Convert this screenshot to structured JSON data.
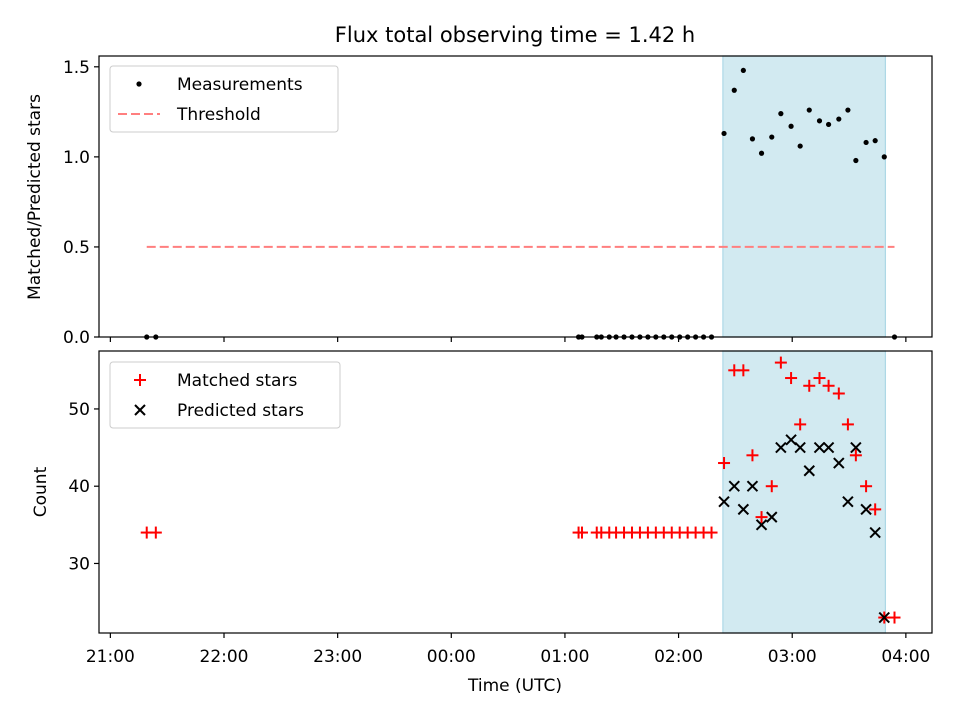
{
  "title": "Flux total observing time = 1.42 h",
  "xlabel": "Time (UTC)",
  "xticks": [
    {
      "h": 21,
      "label": "21:00"
    },
    {
      "h": 22,
      "label": "22:00"
    },
    {
      "h": 23,
      "label": "23:00"
    },
    {
      "h": 24,
      "label": "00:00"
    },
    {
      "h": 25,
      "label": "01:00"
    },
    {
      "h": 26,
      "label": "02:00"
    },
    {
      "h": 27,
      "label": "03:00"
    },
    {
      "h": 28,
      "label": "04:00"
    }
  ],
  "colors": {
    "shade": "#add8e6",
    "threshold": "#ff7f7f",
    "matched": "#ff0000",
    "predicted": "#000000",
    "points": "#000000"
  },
  "chart_data": [
    {
      "type": "scatter",
      "ylabel": "Matched/Predicted stars",
      "xlim": [
        20.9,
        28.23
      ],
      "ylim": [
        0,
        1.56
      ],
      "yticks": [
        {
          "v": 0,
          "label": "0.0"
        },
        {
          "v": 0.5,
          "label": "0.5"
        },
        {
          "v": 1.0,
          "label": "1.0"
        },
        {
          "v": 1.5,
          "label": "1.5"
        }
      ],
      "shaded_region": [
        26.39,
        27.82
      ],
      "legend": [
        "Measurements",
        "Threshold"
      ],
      "legend_location": "upper-left",
      "threshold": {
        "y": 0.5,
        "x_range": [
          21.32,
          27.9
        ]
      },
      "series": [
        {
          "name": "Measurements",
          "x": [
            21.32,
            21.4,
            25.12,
            25.15,
            25.28,
            25.32,
            25.39,
            25.45,
            25.52,
            25.59,
            25.66,
            25.73,
            25.8,
            25.87,
            25.94,
            26.01,
            26.08,
            26.15,
            26.22,
            26.29,
            26.4,
            26.49,
            26.57,
            26.65,
            26.73,
            26.82,
            26.9,
            26.99,
            27.07,
            27.15,
            27.24,
            27.32,
            27.41,
            27.49,
            27.56,
            27.65,
            27.73,
            27.81,
            27.9
          ],
          "y": [
            0,
            0,
            0,
            0,
            0,
            0,
            0,
            0,
            0,
            0,
            0,
            0,
            0,
            0,
            0,
            0,
            0,
            0,
            0,
            0,
            1.13,
            1.37,
            1.48,
            1.1,
            1.02,
            1.11,
            1.24,
            1.17,
            1.06,
            1.26,
            1.2,
            1.18,
            1.21,
            1.26,
            0.98,
            1.08,
            1.09,
            1.0,
            0
          ]
        }
      ]
    },
    {
      "type": "scatter",
      "ylabel": "Count",
      "xlim": [
        20.9,
        28.23
      ],
      "ylim": [
        21,
        57.5
      ],
      "yticks": [
        {
          "v": 30,
          "label": "30"
        },
        {
          "v": 40,
          "label": "40"
        },
        {
          "v": 50,
          "label": "50"
        }
      ],
      "shaded_region": [
        26.39,
        27.82
      ],
      "legend": [
        "Matched stars",
        "Predicted stars"
      ],
      "legend_location": "upper-left",
      "series": [
        {
          "name": "Matched stars",
          "marker": "+",
          "x": [
            21.32,
            21.4,
            25.12,
            25.15,
            25.28,
            25.32,
            25.39,
            25.45,
            25.52,
            25.59,
            25.66,
            25.73,
            25.8,
            25.87,
            25.94,
            26.01,
            26.08,
            26.15,
            26.22,
            26.29,
            26.4,
            26.49,
            26.57,
            26.65,
            26.73,
            26.82,
            26.9,
            26.99,
            27.07,
            27.15,
            27.24,
            27.32,
            27.41,
            27.49,
            27.56,
            27.65,
            27.73,
            27.81,
            27.9
          ],
          "y": [
            34,
            34,
            34,
            34,
            34,
            34,
            34,
            34,
            34,
            34,
            34,
            34,
            34,
            34,
            34,
            34,
            34,
            34,
            34,
            34,
            43,
            55,
            55,
            44,
            36,
            40,
            56,
            54,
            48,
            53,
            54,
            53,
            52,
            48,
            44,
            40,
            37,
            23,
            23
          ]
        },
        {
          "name": "Predicted stars",
          "marker": "x",
          "x": [
            26.4,
            26.49,
            26.57,
            26.65,
            26.73,
            26.82,
            26.9,
            26.99,
            27.07,
            27.15,
            27.24,
            27.32,
            27.41,
            27.49,
            27.56,
            27.65,
            27.73,
            27.81
          ],
          "y": [
            38,
            40,
            37,
            40,
            35,
            36,
            45,
            46,
            45,
            42,
            45,
            45,
            43,
            38,
            45,
            37,
            34,
            23
          ]
        }
      ]
    }
  ]
}
